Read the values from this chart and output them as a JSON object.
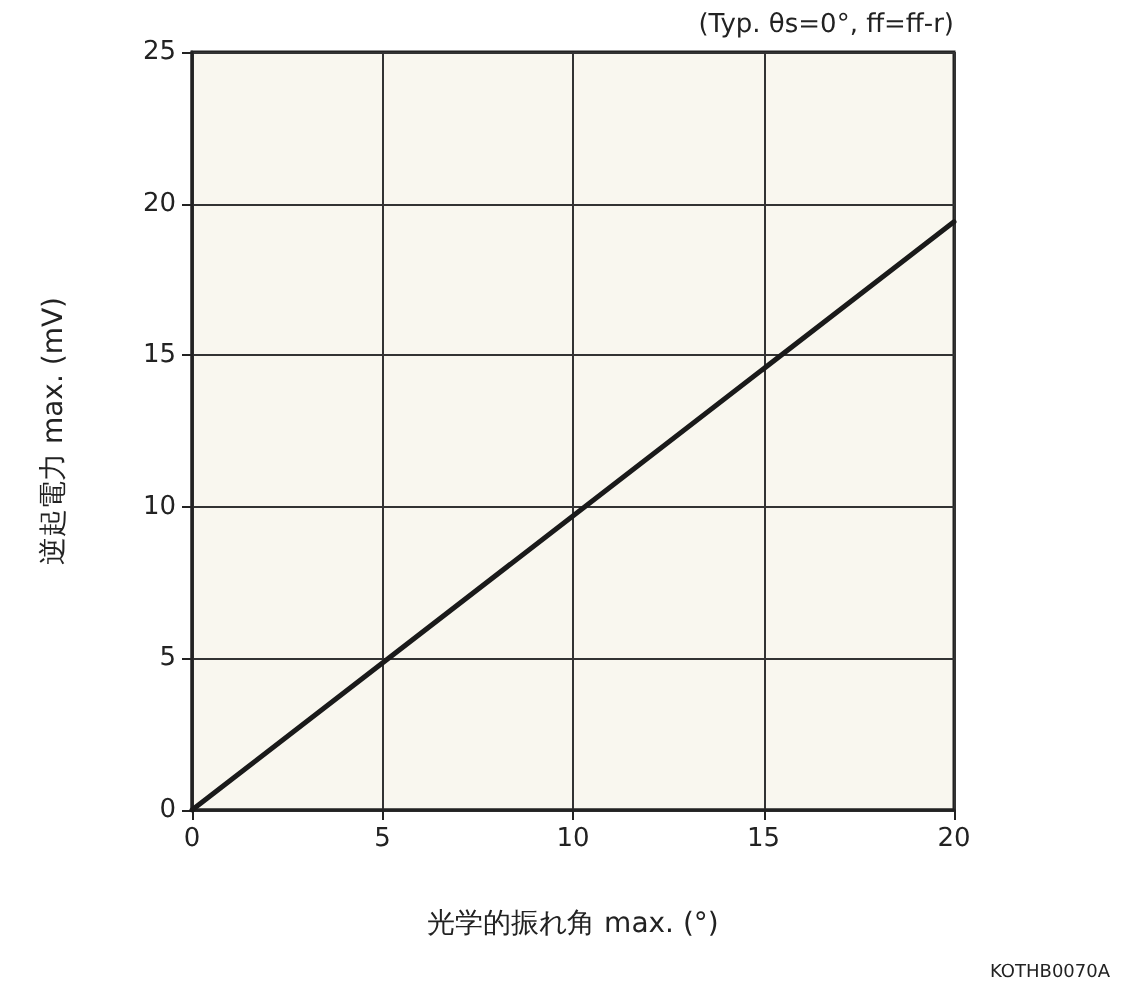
{
  "chart_data": {
    "type": "line",
    "xlabel": "光学的振れ角 max. (°)",
    "ylabel": "逆起電力 max. (mV)",
    "annotations": [
      "(Typ. θs=0°, ff=ff-r)",
      "KOTHB0070A"
    ],
    "x": [
      0,
      20
    ],
    "series": [
      {
        "color": "#1a1a1a",
        "values": [
          0,
          19.4
        ]
      }
    ],
    "xlim": [
      0,
      20
    ],
    "xticks": [
      0,
      5,
      10,
      15,
      20
    ],
    "ylim": [
      0,
      25
    ],
    "yticks": [
      0,
      5,
      10,
      15,
      20,
      25
    ],
    "grid": true,
    "marker": "none",
    "line_style": "solid"
  }
}
